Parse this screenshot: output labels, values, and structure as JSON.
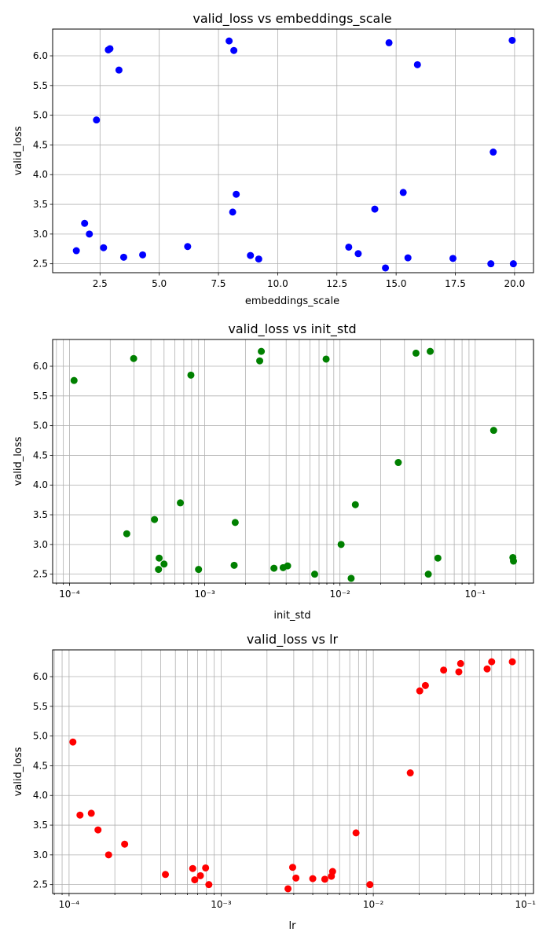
{
  "chart_data": [
    {
      "type": "scatter",
      "title": "valid_loss vs embeddings_scale",
      "xlabel": "embeddings_scale",
      "ylabel": "valid_loss",
      "xscale": "linear",
      "xlim": [
        0.5,
        20.8
      ],
      "ylim": [
        2.35,
        6.45
      ],
      "xticks": [
        2.5,
        5.0,
        7.5,
        10.0,
        12.5,
        15.0,
        17.5,
        20.0
      ],
      "xtick_labels": [
        "2.5",
        "5.0",
        "7.5",
        "10.0",
        "12.5",
        "15.0",
        "17.5",
        "20.0"
      ],
      "yticks": [
        2.5,
        3.0,
        3.5,
        4.0,
        4.5,
        5.0,
        5.5,
        6.0
      ],
      "ytick_labels": [
        "2.5",
        "3.0",
        "3.5",
        "4.0",
        "4.5",
        "5.0",
        "5.5",
        "6.0"
      ],
      "grid": true,
      "color": "#0000ff",
      "points": [
        [
          1.5,
          2.72
        ],
        [
          1.85,
          3.18
        ],
        [
          2.05,
          3.0
        ],
        [
          2.35,
          4.92
        ],
        [
          2.65,
          2.77
        ],
        [
          2.85,
          6.1
        ],
        [
          2.92,
          6.12
        ],
        [
          3.3,
          5.76
        ],
        [
          3.5,
          2.61
        ],
        [
          4.3,
          2.65
        ],
        [
          6.2,
          2.79
        ],
        [
          7.95,
          6.25
        ],
        [
          8.1,
          3.37
        ],
        [
          8.15,
          6.09
        ],
        [
          8.25,
          3.67
        ],
        [
          8.85,
          2.64
        ],
        [
          9.2,
          2.58
        ],
        [
          13.0,
          2.78
        ],
        [
          13.4,
          2.67
        ],
        [
          14.1,
          3.42
        ],
        [
          14.55,
          2.43
        ],
        [
          14.7,
          6.22
        ],
        [
          15.3,
          3.7
        ],
        [
          15.5,
          2.6
        ],
        [
          15.9,
          5.85
        ],
        [
          17.4,
          2.59
        ],
        [
          19.0,
          2.5
        ],
        [
          19.1,
          4.38
        ],
        [
          19.9,
          6.26
        ],
        [
          19.95,
          2.5
        ]
      ]
    },
    {
      "type": "scatter",
      "title": "valid_loss vs init_std",
      "xlabel": "init_std",
      "ylabel": "valid_loss",
      "xscale": "log",
      "xlim": [
        7.5e-05,
        0.27
      ],
      "ylim": [
        2.35,
        6.45
      ],
      "xticks": [
        0.0001,
        0.001,
        0.01,
        0.1
      ],
      "xtick_labels": [
        "10⁻⁴",
        "10⁻³",
        "10⁻²",
        "10⁻¹"
      ],
      "yticks": [
        2.5,
        3.0,
        3.5,
        4.0,
        4.5,
        5.0,
        5.5,
        6.0
      ],
      "ytick_labels": [
        "2.5",
        "3.0",
        "3.5",
        "4.0",
        "4.5",
        "5.0",
        "5.5",
        "6.0"
      ],
      "grid": true,
      "color": "#008000",
      "points": [
        [
          0.000108,
          5.76
        ],
        [
          0.000265,
          3.18
        ],
        [
          0.000298,
          6.13
        ],
        [
          0.000425,
          3.42
        ],
        [
          0.000455,
          2.58
        ],
        [
          0.00046,
          2.77
        ],
        [
          0.0005,
          2.67
        ],
        [
          0.00066,
          3.7
        ],
        [
          0.00079,
          5.85
        ],
        [
          0.0009,
          2.58
        ],
        [
          0.00165,
          2.65
        ],
        [
          0.00168,
          3.37
        ],
        [
          0.00255,
          6.09
        ],
        [
          0.00262,
          6.25
        ],
        [
          0.00325,
          2.6
        ],
        [
          0.0038,
          2.61
        ],
        [
          0.0041,
          2.64
        ],
        [
          0.0065,
          2.5
        ],
        [
          0.0079,
          6.12
        ],
        [
          0.0102,
          3.0
        ],
        [
          0.0121,
          2.43
        ],
        [
          0.013,
          3.67
        ],
        [
          0.027,
          4.38
        ],
        [
          0.0365,
          6.22
        ],
        [
          0.045,
          2.5
        ],
        [
          0.0465,
          6.25
        ],
        [
          0.053,
          2.77
        ],
        [
          0.137,
          4.92
        ],
        [
          0.19,
          2.78
        ],
        [
          0.192,
          2.72
        ]
      ]
    },
    {
      "type": "scatter",
      "title": "valid_loss vs lr",
      "xlabel": "lr",
      "ylabel": "valid_loss",
      "xscale": "log",
      "xlim": [
        7.8e-05,
        0.113
      ],
      "ylim": [
        2.35,
        6.45
      ],
      "xticks": [
        0.0001,
        0.001,
        0.01,
        0.1
      ],
      "xtick_labels": [
        "10⁻⁴",
        "10⁻³",
        "10⁻²",
        "10⁻¹"
      ],
      "yticks": [
        2.5,
        3.0,
        3.5,
        4.0,
        4.5,
        5.0,
        5.5,
        6.0
      ],
      "ytick_labels": [
        "2.5",
        "3.0",
        "3.5",
        "4.0",
        "4.5",
        "5.0",
        "5.5",
        "6.0"
      ],
      "grid": true,
      "color": "#ff0000",
      "points": [
        [
          0.000106,
          4.9
        ],
        [
          0.000118,
          3.67
        ],
        [
          0.00014,
          3.7
        ],
        [
          0.000155,
          3.42
        ],
        [
          0.000182,
          3.0
        ],
        [
          0.000232,
          3.18
        ],
        [
          0.00043,
          2.67
        ],
        [
          0.00065,
          2.77
        ],
        [
          0.00067,
          2.58
        ],
        [
          0.00073,
          2.65
        ],
        [
          0.00079,
          2.78
        ],
        [
          0.00083,
          2.5
        ],
        [
          0.00275,
          2.43
        ],
        [
          0.00295,
          2.79
        ],
        [
          0.0031,
          2.61
        ],
        [
          0.004,
          2.6
        ],
        [
          0.0048,
          2.59
        ],
        [
          0.0053,
          2.64
        ],
        [
          0.0054,
          2.72
        ],
        [
          0.0077,
          3.37
        ],
        [
          0.0095,
          2.5
        ],
        [
          0.0175,
          4.38
        ],
        [
          0.0202,
          5.76
        ],
        [
          0.022,
          5.85
        ],
        [
          0.029,
          6.11
        ],
        [
          0.0365,
          6.08
        ],
        [
          0.0375,
          6.22
        ],
        [
          0.056,
          6.13
        ],
        [
          0.06,
          6.25
        ],
        [
          0.082,
          6.25
        ]
      ]
    }
  ]
}
